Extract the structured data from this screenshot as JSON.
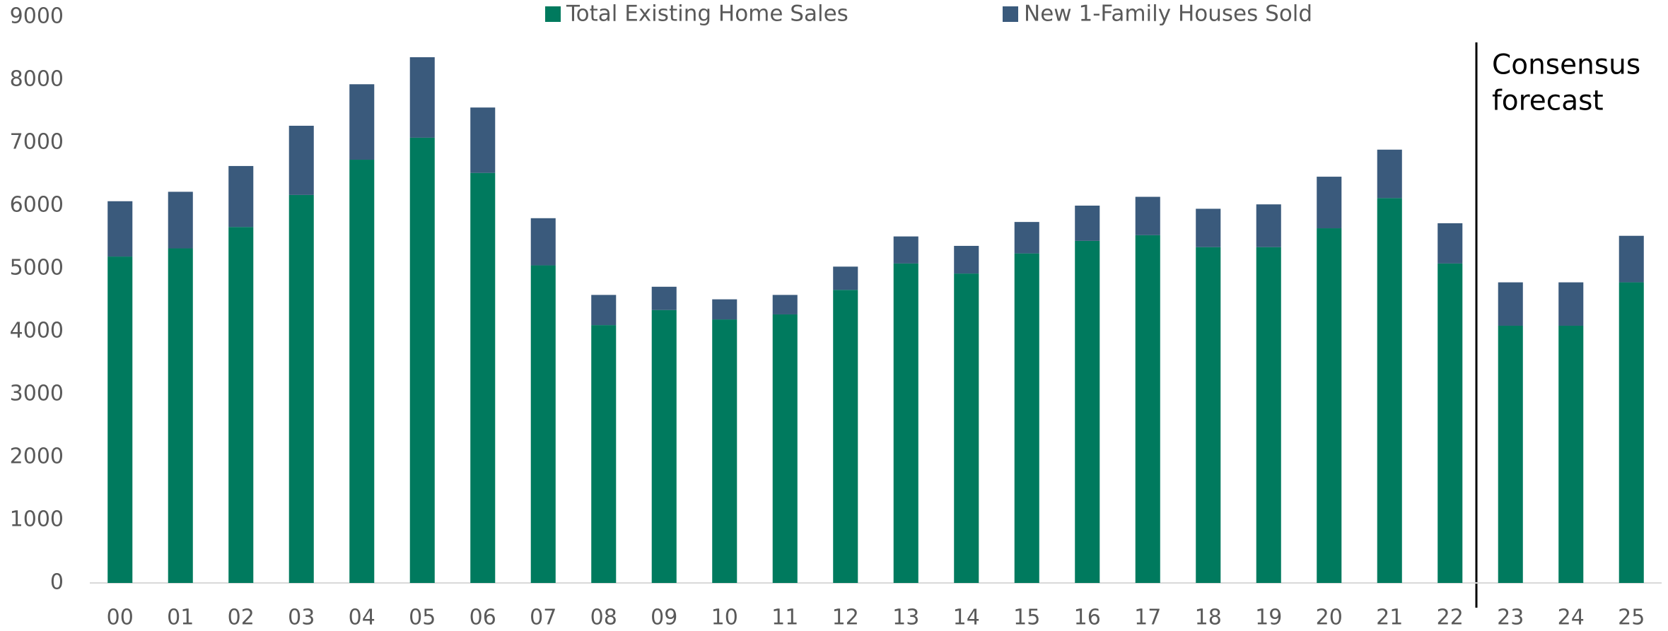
{
  "chart_data": {
    "type": "stacked_bar",
    "categories": [
      "00",
      "01",
      "02",
      "03",
      "04",
      "05",
      "06",
      "07",
      "08",
      "09",
      "10",
      "11",
      "12",
      "13",
      "14",
      "15",
      "16",
      "17",
      "18",
      "19",
      "20",
      "21",
      "22",
      "23",
      "24",
      "25"
    ],
    "series": [
      {
        "name": "Total Existing Home Sales",
        "color": "#007a5e",
        "values": [
          5190,
          5320,
          5660,
          6170,
          6730,
          7080,
          6520,
          5050,
          4100,
          4340,
          4190,
          4270,
          4660,
          5080,
          4920,
          5240,
          5440,
          5530,
          5340,
          5340,
          5640,
          6120,
          5080,
          4090,
          4090,
          4780
        ]
      },
      {
        "name": "New 1-Family Houses Sold",
        "color": "#3a5a7c",
        "values": [
          880,
          900,
          970,
          1100,
          1200,
          1280,
          1040,
          750,
          480,
          370,
          320,
          310,
          370,
          430,
          440,
          500,
          560,
          610,
          610,
          680,
          820,
          770,
          640,
          690,
          690,
          740
        ]
      }
    ],
    "ylim": [
      0,
      9000
    ],
    "yticks": [
      0,
      1000,
      2000,
      3000,
      4000,
      5000,
      6000,
      7000,
      8000,
      9000
    ],
    "annotation": [
      "Consensus",
      "forecast"
    ],
    "grid": false,
    "legend": "top"
  }
}
